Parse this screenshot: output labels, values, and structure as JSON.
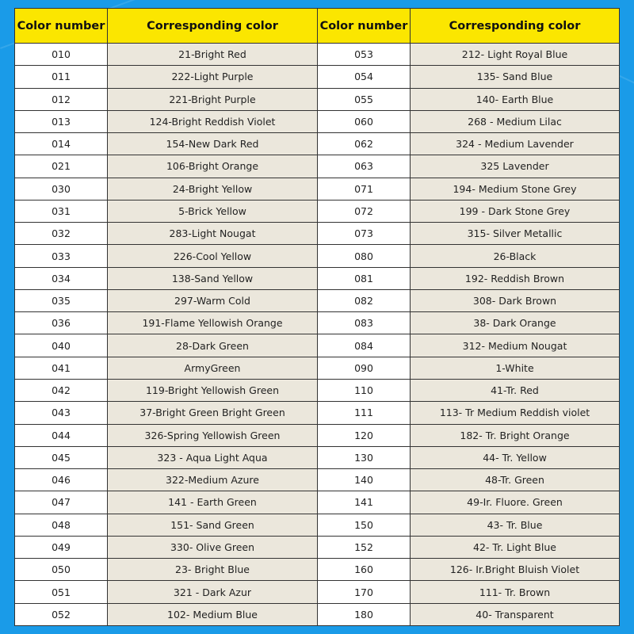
{
  "headers": [
    "Color number",
    "Corresponding color",
    "Color number",
    "Corresponding color"
  ],
  "rows": [
    [
      "010",
      "21-Bright Red",
      "053",
      "212- Light Royal Blue"
    ],
    [
      "011",
      "222-Light Purple",
      "054",
      "135- Sand Blue"
    ],
    [
      "012",
      "221-Bright Purple",
      "055",
      "140- Earth Blue"
    ],
    [
      "013",
      "124-Bright Reddish Violet",
      "060",
      "268 - Medium Lilac"
    ],
    [
      "014",
      "154-New Dark Red",
      "062",
      "324 - Medium Lavender"
    ],
    [
      "021",
      "106-Bright Orange",
      "063",
      "325 Lavender"
    ],
    [
      "030",
      "24-Bright Yellow",
      "071",
      "194- Medium Stone Grey"
    ],
    [
      "031",
      "5-Brick Yellow",
      "072",
      "199 - Dark Stone Grey"
    ],
    [
      "032",
      "283-Light Nougat",
      "073",
      "315- Silver Metallic"
    ],
    [
      "033",
      "226-Cool Yellow",
      "080",
      "26-Black"
    ],
    [
      "034",
      "138-Sand Yellow",
      "081",
      "192- Reddish Brown"
    ],
    [
      "035",
      "297-Warm Cold",
      "082",
      "308- Dark Brown"
    ],
    [
      "036",
      "191-Flame Yellowish Orange",
      "083",
      "38- Dark Orange"
    ],
    [
      "040",
      "28-Dark Green",
      "084",
      "312- Medium Nougat"
    ],
    [
      "041",
      "ArmyGreen",
      "090",
      "1-White"
    ],
    [
      "042",
      "119-Bright Yellowish Green",
      "110",
      "41-Tr. Red"
    ],
    [
      "043",
      "37-Bright Green Bright Green",
      "111",
      "113- Tr Medium Reddish violet"
    ],
    [
      "044",
      "326-Spring Yellowish Green",
      "120",
      "182- Tr. Bright Orange"
    ],
    [
      "045",
      "323 - Aqua Light Aqua",
      "130",
      "44- Tr. Yellow"
    ],
    [
      "046",
      "322-Medium Azure",
      "140",
      "48-Tr. Green"
    ],
    [
      "047",
      "141 - Earth Green",
      "141",
      "49-Ir. Fluore. Green"
    ],
    [
      "048",
      "151- Sand Green",
      "150",
      "43- Tr. Blue"
    ],
    [
      "049",
      "330- Olive Green",
      "152",
      "42- Tr. Light Blue"
    ],
    [
      "050",
      "23- Bright Blue",
      "160",
      "126- Ir.Bright Bluish Violet"
    ],
    [
      "051",
      "321 - Dark Azur",
      "170",
      "111- Tr. Brown"
    ],
    [
      "052",
      "102- Medium Blue",
      "180",
      "40- Transparent"
    ]
  ],
  "colors": {
    "background": "#1a9be8",
    "header": "#fbe600",
    "color_cell": "#ebe7dc",
    "number_cell": "#ffffff"
  }
}
